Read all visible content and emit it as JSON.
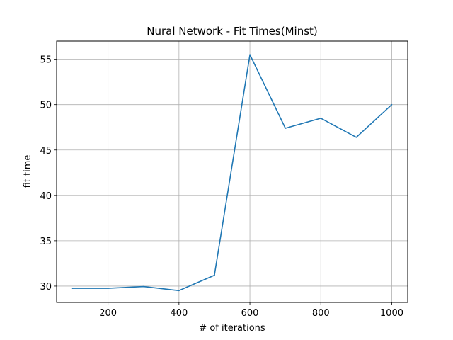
{
  "chart_data": {
    "type": "line",
    "title": "Nural Network - Fit Times(Minst)",
    "xlabel": "# of iterations",
    "ylabel": "fit time",
    "x": [
      100,
      200,
      300,
      400,
      500,
      600,
      700,
      800,
      900,
      1000
    ],
    "series": [
      {
        "values": [
          29.75,
          29.75,
          29.95,
          29.5,
          31.2,
          55.5,
          47.4,
          48.5,
          46.4,
          50.0
        ]
      }
    ],
    "xlim": [
      55,
      1045
    ],
    "ylim": [
      28.2,
      57.0
    ],
    "xticks": [
      200,
      400,
      600,
      800,
      1000
    ],
    "yticks": [
      30,
      35,
      40,
      45,
      50,
      55
    ],
    "grid": true,
    "legend": false,
    "line_color": "#1f77b4"
  }
}
